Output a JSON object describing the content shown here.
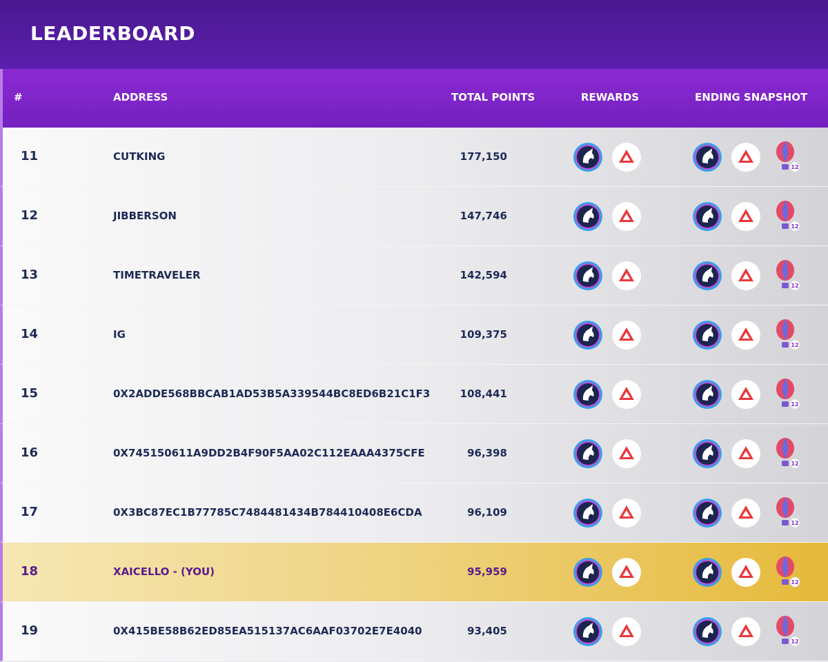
{
  "header": {
    "title": "LEADERBOARD"
  },
  "table": {
    "columns": [
      "#",
      "ADDRESS",
      "TOTAL POINTS",
      "REWARDS",
      "ENDING SNAPSHOT"
    ],
    "rows": [
      {
        "rank": "11",
        "address": "CUTKING",
        "points": "177,150",
        "badge": "12"
      },
      {
        "rank": "12",
        "address": "JIBBERSON",
        "points": "147,746",
        "badge": "12"
      },
      {
        "rank": "13",
        "address": "TIMETRAVELER",
        "points": "142,594",
        "badge": "12"
      },
      {
        "rank": "14",
        "address": "IG",
        "points": "109,375",
        "badge": "12"
      },
      {
        "rank": "15",
        "address": "0X2ADDE568BBCAB1AD53B5A339544BC8ED6B21C1F3",
        "points": "108,441",
        "badge": "12"
      },
      {
        "rank": "16",
        "address": "0X745150611A9DD2B4F90F5AA02C112EAAA4375CFE",
        "points": "96,398",
        "badge": "12"
      },
      {
        "rank": "17",
        "address": "0X3BC87EC1B77785C7484481434B784410408E6CDA",
        "points": "96,109",
        "badge": "12"
      },
      {
        "rank": "18",
        "address": "XAICELLO - (YOU)",
        "points": "95,959",
        "badge": "12",
        "highlight": true
      },
      {
        "rank": "19",
        "address": "0X415BE58B62ED85EA515137AC6AAF03702E7E4040",
        "points": "93,405",
        "badge": "12"
      }
    ]
  }
}
